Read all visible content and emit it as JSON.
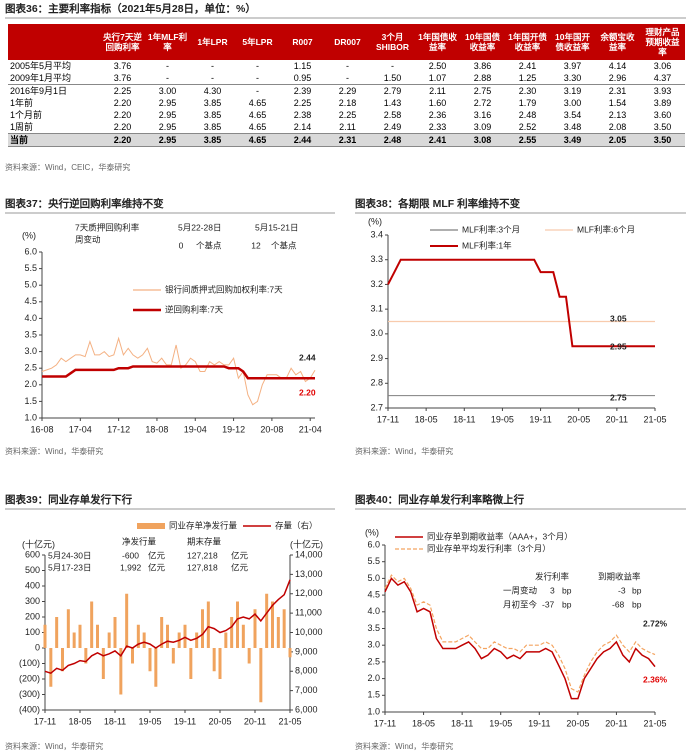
{
  "table": {
    "title": "图表36：主要利率指标（2021年5月28日，单位：%）",
    "columns": [
      "央行7天逆回购利率",
      "1年MLF利率",
      "1年LPR",
      "5年LPR",
      "R007",
      "DR007",
      "3个月SHIBOR",
      "1年国债收益率",
      "10年国债收益率",
      "1年国开债收益率",
      "10年国开债收益率",
      "余额宝收益率",
      "理财产品预期收益率"
    ],
    "rows": [
      {
        "label": "2005年5月平均",
        "cells": [
          "3.76",
          "-",
          "-",
          "-",
          "1.15",
          "-",
          "-",
          "2.50",
          "3.86",
          "2.41",
          "3.97",
          "4.14",
          "3.06"
        ]
      },
      {
        "label": "2009年1月平均",
        "cells": [
          "3.76",
          "-",
          "-",
          "-",
          "0.95",
          "-",
          "1.50",
          "1.07",
          "2.88",
          "1.25",
          "3.30",
          "2.96",
          "4.37"
        ]
      },
      {
        "label": "2016年9月1日",
        "cells": [
          "2.25",
          "3.00",
          "4.30",
          "-",
          "2.39",
          "2.29",
          "2.79",
          "2.11",
          "2.75",
          "2.30",
          "3.19",
          "2.31",
          "3.93"
        ]
      },
      {
        "label": "1年前",
        "cells": [
          "2.20",
          "2.95",
          "3.85",
          "4.65",
          "2.25",
          "2.18",
          "1.43",
          "1.60",
          "2.72",
          "1.79",
          "3.00",
          "1.54",
          "3.89"
        ]
      },
      {
        "label": "1个月前",
        "cells": [
          "2.20",
          "2.95",
          "3.85",
          "4.65",
          "2.38",
          "2.25",
          "2.58",
          "2.36",
          "3.16",
          "2.48",
          "3.54",
          "2.13",
          "3.60"
        ]
      },
      {
        "label": "1周前",
        "cells": [
          "2.20",
          "2.95",
          "3.85",
          "4.65",
          "2.14",
          "2.11",
          "2.49",
          "2.33",
          "3.09",
          "2.52",
          "3.48",
          "2.08",
          "3.50"
        ]
      },
      {
        "label": "当前",
        "cells": [
          "2.20",
          "2.95",
          "3.85",
          "4.65",
          "2.44",
          "2.31",
          "2.48",
          "2.41",
          "3.08",
          "2.55",
          "3.49",
          "2.05",
          "3.50"
        ]
      }
    ],
    "source": "资料来源：Wind，CEIC，华泰研究"
  },
  "chart_data": [
    {
      "type": "line",
      "title": "图表37：央行逆回购利率维持不变",
      "y_label": "(%)",
      "x": [
        "16-08",
        "16-09",
        "16-10",
        "16-11",
        "16-12",
        "17-01",
        "17-02",
        "17-03",
        "17-04",
        "17-05",
        "17-06",
        "17-07",
        "17-08",
        "17-09",
        "17-10",
        "17-11",
        "17-12",
        "18-01",
        "18-02",
        "18-03",
        "18-04",
        "18-05",
        "18-06",
        "18-07",
        "18-08",
        "18-09",
        "18-10",
        "18-11",
        "18-12",
        "19-01",
        "19-02",
        "19-03",
        "19-04",
        "19-05",
        "19-06",
        "19-07",
        "19-08",
        "19-09",
        "19-10",
        "19-11",
        "19-12",
        "20-01",
        "20-02",
        "20-03",
        "20-04",
        "20-05",
        "20-06",
        "20-07",
        "20-08",
        "20-09",
        "20-10",
        "20-11",
        "20-12",
        "21-01",
        "21-02",
        "21-03",
        "21-04",
        "21-05"
      ],
      "xticks": [
        "16-08",
        "17-04",
        "17-12",
        "18-08",
        "19-04",
        "19-12",
        "20-08",
        "21-04"
      ],
      "ylim": [
        1,
        6
      ],
      "yticks": [
        {
          "value": 1,
          "label": "1.0"
        },
        1.5,
        {
          "value": 2,
          "label": "2.0"
        },
        2.5,
        {
          "value": 3,
          "label": "3.0"
        },
        3.5,
        {
          "value": 4,
          "label": "4.0"
        },
        4.5,
        {
          "value": 5,
          "label": "5.0"
        },
        5.5,
        {
          "value": 6,
          "label": "6.0"
        }
      ],
      "series": [
        {
          "name": "银行间质押式回购加权利率:7天",
          "color": "#f4b183",
          "values": [
            2.4,
            2.45,
            2.5,
            2.6,
            2.8,
            2.7,
            2.8,
            2.9,
            2.9,
            2.85,
            3.3,
            2.9,
            2.9,
            3.0,
            2.85,
            2.9,
            3.4,
            2.9,
            3.1,
            2.9,
            2.8,
            2.9,
            3.1,
            2.7,
            2.65,
            2.8,
            2.6,
            2.6,
            3.2,
            2.5,
            2.6,
            2.8,
            2.7,
            2.4,
            2.4,
            2.7,
            2.6,
            2.7,
            2.6,
            2.6,
            2.8,
            2.2,
            2.4,
            1.7,
            1.4,
            1.5,
            2.0,
            2.3,
            2.3,
            2.3,
            2.2,
            2.2,
            2.5,
            2.3,
            2.4,
            2.1,
            2.2,
            2.44
          ]
        },
        {
          "name": "逆回购利率:7天",
          "color": "#c00000",
          "values": [
            2.25,
            2.25,
            2.25,
            2.25,
            2.25,
            2.25,
            2.35,
            2.45,
            2.45,
            2.45,
            2.45,
            2.45,
            2.45,
            2.45,
            2.45,
            2.45,
            2.5,
            2.5,
            2.5,
            2.55,
            2.55,
            2.55,
            2.55,
            2.55,
            2.55,
            2.55,
            2.55,
            2.55,
            2.55,
            2.55,
            2.55,
            2.55,
            2.55,
            2.55,
            2.55,
            2.55,
            2.55,
            2.55,
            2.55,
            2.5,
            2.5,
            2.5,
            2.4,
            2.2,
            2.2,
            2.2,
            2.2,
            2.2,
            2.2,
            2.2,
            2.2,
            2.2,
            2.2,
            2.2,
            2.2,
            2.2,
            2.2,
            2.2
          ]
        }
      ],
      "annotations": [
        "7天质押回购利率",
        "周变动",
        "5月22-28日",
        "5月15-21日",
        "0",
        "个基点",
        "12",
        "个基点",
        "2.44",
        "2.20"
      ],
      "source": "资料来源：Wind，华泰研究"
    },
    {
      "type": "line",
      "title": "图表38：各期限 MLF 利率维持不变",
      "y_label": "(%)",
      "x": [
        "17-11",
        "17-12",
        "18-01",
        "18-02",
        "18-03",
        "18-04",
        "18-05",
        "18-06",
        "18-07",
        "18-08",
        "18-09",
        "18-10",
        "18-11",
        "18-12",
        "19-01",
        "19-02",
        "19-03",
        "19-04",
        "19-05",
        "19-06",
        "19-07",
        "19-08",
        "19-09",
        "19-10",
        "19-11",
        "19-12",
        "20-01",
        "20-02",
        "20-03",
        "20-04",
        "20-05",
        "20-06",
        "20-07",
        "20-08",
        "20-09",
        "20-10",
        "20-11",
        "20-12",
        "21-01",
        "21-02",
        "21-03",
        "21-04",
        "21-05"
      ],
      "xticks": [
        "17-11",
        "18-05",
        "18-11",
        "19-05",
        "19-11",
        "20-05",
        "20-11",
        "21-05"
      ],
      "ylim": [
        2.7,
        3.4
      ],
      "yticks": [
        2.7,
        2.8,
        2.9,
        {
          "value": 3,
          "label": "3.0"
        },
        3.1,
        3.2,
        3.3,
        3.4
      ],
      "series": [
        {
          "name": "MLF利率:3个月",
          "color": "#7f7f7f",
          "x": [
            "17-11",
            "21-05"
          ],
          "values": [
            2.75,
            2.75
          ]
        },
        {
          "name": "MLF利率:6个月",
          "color": "#f8cbad",
          "x": [
            "17-11",
            "21-05"
          ],
          "values": [
            3.05,
            3.05
          ]
        },
        {
          "name": "MLF利率:1年",
          "color": "#c00000",
          "values": [
            3.2,
            3.25,
            3.3,
            3.3,
            3.3,
            3.3,
            3.3,
            3.3,
            3.3,
            3.3,
            3.3,
            3.3,
            3.3,
            3.3,
            3.3,
            3.3,
            3.3,
            3.3,
            3.3,
            3.3,
            3.3,
            3.3,
            3.3,
            3.3,
            3.25,
            3.25,
            3.25,
            3.15,
            3.15,
            2.95,
            2.95,
            2.95,
            2.95,
            2.95,
            2.95,
            2.95,
            2.95,
            2.95,
            2.95,
            2.95,
            2.95,
            2.95,
            2.95
          ]
        }
      ],
      "annotations": [
        "3.05",
        "2.95",
        "2.75"
      ],
      "source": "资料来源：Wind，华泰研究"
    },
    {
      "type": "combo",
      "title": "图表39：同业存单发行下行",
      "y_label": "(十亿元)",
      "y2_label": "(十亿元)",
      "x": [
        "17-11",
        "17-12",
        "18-01",
        "18-02",
        "18-03",
        "18-04",
        "18-05",
        "18-06",
        "18-07",
        "18-08",
        "18-09",
        "18-10",
        "18-11",
        "18-12",
        "19-01",
        "19-02",
        "19-03",
        "19-04",
        "19-05",
        "19-06",
        "19-07",
        "19-08",
        "19-09",
        "19-10",
        "19-11",
        "19-12",
        "20-01",
        "20-02",
        "20-03",
        "20-04",
        "20-05",
        "20-06",
        "20-07",
        "20-08",
        "20-09",
        "20-10",
        "20-11",
        "20-12",
        "21-01",
        "21-02",
        "21-03",
        "21-04",
        "21-05"
      ],
      "xticks": [
        "17-11",
        "18-05",
        "18-11",
        "19-05",
        "19-11",
        "20-05",
        "20-11",
        "21-05"
      ],
      "ylim": [
        -400,
        600
      ],
      "yticks": [
        {
          "value": -400,
          "label": "(400)"
        },
        {
          "value": -300,
          "label": "(300)"
        },
        {
          "value": -200,
          "label": "(200)"
        },
        {
          "value": -100,
          "label": "(100)"
        },
        0,
        100,
        200,
        300,
        400,
        500,
        600
      ],
      "y2lim": [
        6000,
        14000
      ],
      "y2ticks": [
        {
          "value": 6000,
          "label": "6,000"
        },
        {
          "value": 7000,
          "label": "7,000"
        },
        {
          "value": 8000,
          "label": "8,000"
        },
        {
          "value": 9000,
          "label": "9,000"
        },
        {
          "value": 10000,
          "label": "10,000"
        },
        {
          "value": 11000,
          "label": "11,000"
        },
        {
          "value": 12000,
          "label": "12,000"
        },
        {
          "value": 13000,
          "label": "13,000"
        },
        {
          "value": 14000,
          "label": "14,000"
        }
      ],
      "series": [
        {
          "name": "同业存单净发行量",
          "type": "bar",
          "color": "#f0a35e",
          "values": [
            150,
            -250,
            200,
            -150,
            250,
            100,
            150,
            -100,
            300,
            150,
            -200,
            100,
            200,
            -300,
            350,
            -100,
            150,
            100,
            -150,
            -250,
            200,
            150,
            -100,
            100,
            150,
            -200,
            100,
            250,
            300,
            -150,
            -200,
            100,
            200,
            300,
            150,
            -100,
            250,
            -350,
            350,
            300,
            200,
            250,
            -60
          ]
        },
        {
          "name": "存量（右）",
          "type": "line",
          "axis": "y2",
          "color": "#c00000",
          "values": [
            8000,
            7900,
            8150,
            8050,
            8300,
            8400,
            8550,
            8500,
            8800,
            8950,
            8800,
            8900,
            9050,
            8800,
            9300,
            9200,
            9400,
            9500,
            9400,
            9200,
            9400,
            9550,
            9500,
            9600,
            9750,
            9600,
            9700,
            9900,
            10300,
            10200,
            10000,
            10100,
            10300,
            10700,
            10800,
            10700,
            10950,
            10600,
            11000,
            11400,
            11700,
            11950,
            12722
          ]
        }
      ],
      "annotations": [
        "净发行量",
        "期末存量",
        "5月24-30日",
        "-600",
        "亿元",
        "127,218",
        "亿元",
        "5月17-23日",
        "1,992",
        "亿元",
        "127,818",
        "亿元"
      ],
      "source": "资料来源：Wind，华泰研究"
    },
    {
      "type": "line",
      "title": "图表40：同业存单发行利率略微上行",
      "y_label": "(%)",
      "x": [
        "17-11",
        "17-12",
        "18-01",
        "18-02",
        "18-03",
        "18-04",
        "18-05",
        "18-06",
        "18-07",
        "18-08",
        "18-09",
        "18-10",
        "18-11",
        "18-12",
        "19-01",
        "19-02",
        "19-03",
        "19-04",
        "19-05",
        "19-06",
        "19-07",
        "19-08",
        "19-09",
        "19-10",
        "19-11",
        "19-12",
        "20-01",
        "20-02",
        "20-03",
        "20-04",
        "20-05",
        "20-06",
        "20-07",
        "20-08",
        "20-09",
        "20-10",
        "20-11",
        "20-12",
        "21-01",
        "21-02",
        "21-03",
        "21-04",
        "21-05"
      ],
      "xticks": [
        "17-11",
        "18-05",
        "18-11",
        "19-05",
        "19-11",
        "20-05",
        "20-11",
        "21-05"
      ],
      "ylim": [
        1,
        6
      ],
      "yticks": [
        {
          "value": 1,
          "label": "1.0"
        },
        1.5,
        {
          "value": 2,
          "label": "2.0"
        },
        2.5,
        {
          "value": 3,
          "label": "3.0"
        },
        3.5,
        {
          "value": 4,
          "label": "4.0"
        },
        4.5,
        {
          "value": 5,
          "label": "5.0"
        },
        5.5,
        {
          "value": 6,
          "label": "6.0"
        }
      ],
      "series": [
        {
          "name": "同业存单到期收益率（AAA+，3个月）",
          "color": "#c00000",
          "values": [
            4.6,
            5.0,
            4.8,
            4.9,
            4.6,
            4.0,
            4.1,
            4.0,
            3.2,
            2.9,
            2.9,
            2.9,
            3.0,
            3.1,
            2.9,
            2.6,
            2.7,
            2.9,
            2.8,
            2.6,
            2.7,
            2.6,
            2.8,
            2.8,
            2.8,
            2.9,
            2.8,
            2.4,
            2.0,
            1.4,
            1.4,
            2.0,
            2.3,
            2.6,
            2.8,
            2.9,
            3.1,
            2.7,
            2.5,
            2.9,
            2.7,
            2.6,
            2.36
          ]
        },
        {
          "name": "同业存单平均发行利率（3个月）",
          "color": "#f4a460",
          "dash": true,
          "values": [
            4.7,
            5.1,
            4.9,
            5.0,
            4.7,
            4.2,
            4.3,
            4.2,
            3.5,
            3.1,
            3.1,
            3.1,
            3.2,
            3.3,
            3.1,
            2.9,
            2.9,
            3.1,
            3.0,
            2.9,
            2.9,
            2.8,
            3.0,
            3.0,
            3.0,
            3.1,
            3.0,
            2.7,
            2.3,
            1.7,
            1.6,
            2.1,
            2.5,
            2.8,
            3.0,
            3.1,
            3.3,
            3.0,
            2.8,
            3.1,
            2.9,
            2.8,
            2.72
          ]
        }
      ],
      "annotations": [
        "发行利率",
        "到期收益率",
        "一周变动",
        "3",
        "bp",
        "-3",
        "bp",
        "月初至今",
        "-37",
        "bp",
        "-68",
        "bp",
        "2.72%",
        "2.36%"
      ],
      "source": "资料来源：Wind，华泰研究"
    }
  ]
}
